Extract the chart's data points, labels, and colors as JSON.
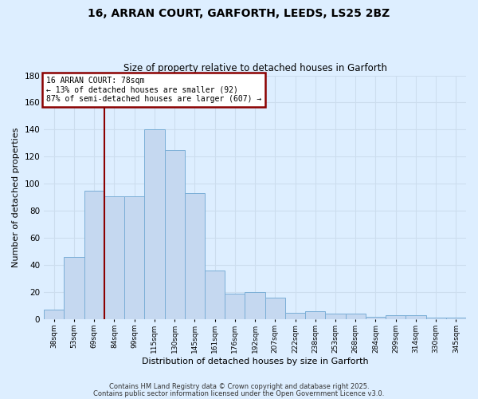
{
  "title_line1": "16, ARRAN COURT, GARFORTH, LEEDS, LS25 2BZ",
  "title_line2": "Size of property relative to detached houses in Garforth",
  "xlabel": "Distribution of detached houses by size in Garforth",
  "ylabel": "Number of detached properties",
  "bins": [
    "38sqm",
    "53sqm",
    "69sqm",
    "84sqm",
    "99sqm",
    "115sqm",
    "130sqm",
    "145sqm",
    "161sqm",
    "176sqm",
    "192sqm",
    "207sqm",
    "222sqm",
    "238sqm",
    "253sqm",
    "268sqm",
    "284sqm",
    "299sqm",
    "314sqm",
    "330sqm",
    "345sqm"
  ],
  "values": [
    7,
    46,
    95,
    91,
    91,
    140,
    125,
    93,
    36,
    19,
    20,
    16,
    5,
    6,
    4,
    4,
    2,
    3,
    3,
    1,
    1
  ],
  "bar_color": "#c5d8f0",
  "bar_edge_color": "#7aaed6",
  "annotation_box_color": "#ffffff",
  "annotation_border_color": "#8b0000",
  "vline_color": "#8b0000",
  "vline_x_index": 2,
  "annotation_text_line1": "16 ARRAN COURT: 78sqm",
  "annotation_text_line2": "← 13% of detached houses are smaller (92)",
  "annotation_text_line3": "87% of semi-detached houses are larger (607) →",
  "grid_color": "#ccddee",
  "ylim": [
    0,
    180
  ],
  "yticks": [
    0,
    20,
    40,
    60,
    80,
    100,
    120,
    140,
    160,
    180
  ],
  "bg_color": "#ddeeff",
  "fig_bg_color": "#ddeeff",
  "footer1": "Contains HM Land Registry data © Crown copyright and database right 2025.",
  "footer2": "Contains public sector information licensed under the Open Government Licence v3.0."
}
